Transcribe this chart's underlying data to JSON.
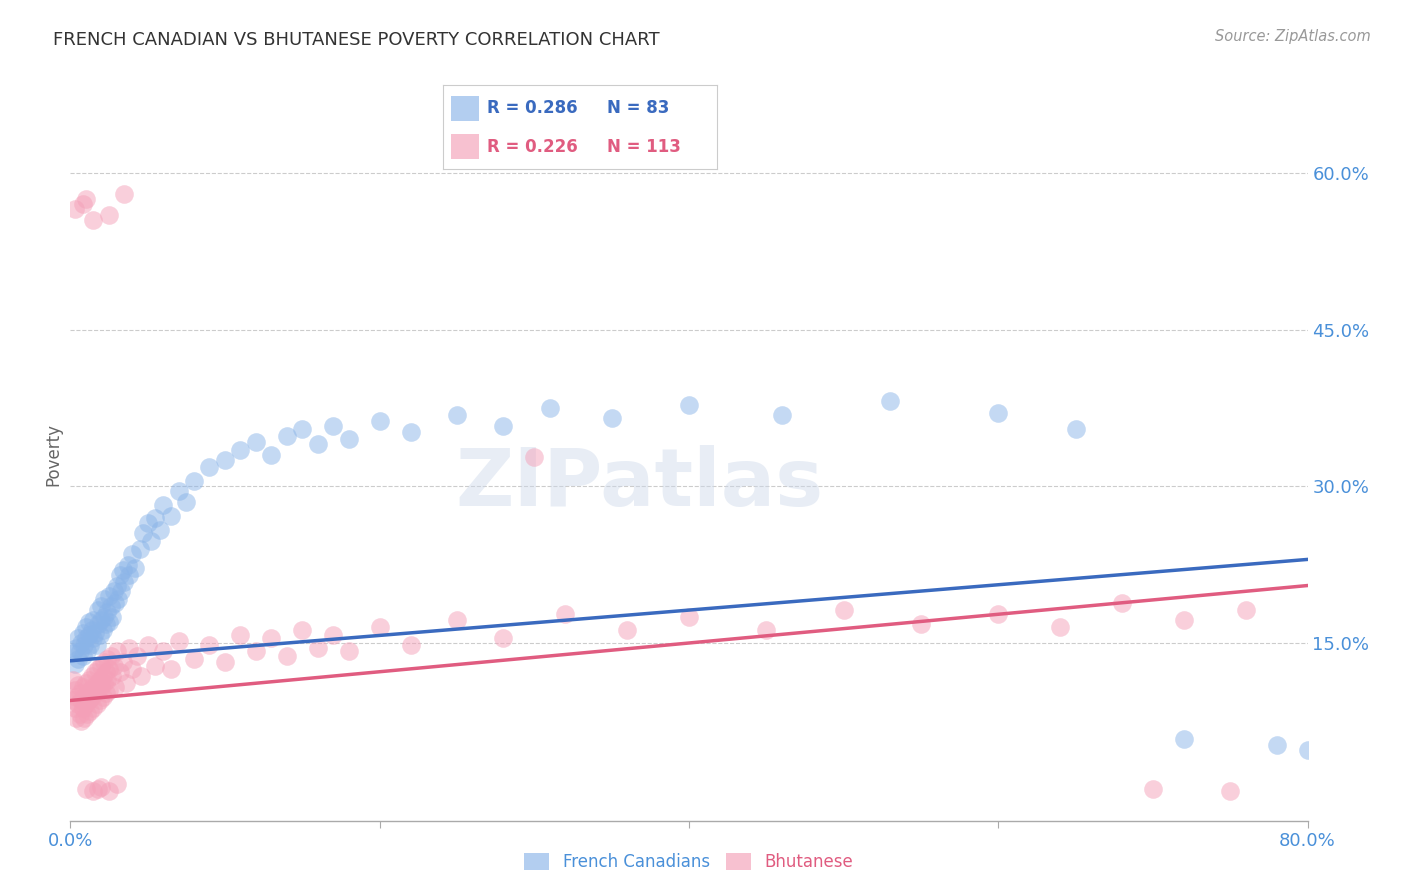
{
  "title": "FRENCH CANADIAN VS BHUTANESE POVERTY CORRELATION CHART",
  "source": "Source: ZipAtlas.com",
  "ylabel": "Poverty",
  "watermark": "ZIPatlas",
  "xlim": [
    0.0,
    0.8
  ],
  "ylim": [
    -0.02,
    0.68
  ],
  "xticks": [
    0.0,
    0.2,
    0.4,
    0.6,
    0.8
  ],
  "xticklabels": [
    "0.0%",
    "",
    "",
    "",
    "80.0%"
  ],
  "yticks": [
    0.15,
    0.3,
    0.45,
    0.6
  ],
  "yticklabels": [
    "15.0%",
    "30.0%",
    "45.0%",
    "60.0%"
  ],
  "blue_color": "#8ab4e8",
  "pink_color": "#f4a0b8",
  "blue_line_color": "#3a6abf",
  "pink_line_color": "#e05c80",
  "blue_label": "French Canadians",
  "pink_label": "Bhutanese",
  "blue_R": "0.286",
  "pink_R": "0.226",
  "blue_N": "83",
  "pink_N": "113",
  "background_color": "#ffffff",
  "grid_color": "#cccccc",
  "title_color": "#333333",
  "axis_label_color": "#666666",
  "tick_label_color": "#4a90d9",
  "source_color": "#999999",
  "blue_line_x": [
    0.0,
    0.8
  ],
  "blue_line_y": [
    0.133,
    0.23
  ],
  "pink_line_x": [
    0.0,
    0.8
  ],
  "pink_line_y": [
    0.095,
    0.205
  ],
  "blue_scatter": [
    [
      0.002,
      0.14
    ],
    [
      0.003,
      0.13
    ],
    [
      0.004,
      0.145
    ],
    [
      0.005,
      0.135
    ],
    [
      0.005,
      0.155
    ],
    [
      0.006,
      0.142
    ],
    [
      0.007,
      0.15
    ],
    [
      0.008,
      0.138
    ],
    [
      0.008,
      0.16
    ],
    [
      0.009,
      0.148
    ],
    [
      0.01,
      0.155
    ],
    [
      0.01,
      0.165
    ],
    [
      0.011,
      0.142
    ],
    [
      0.012,
      0.158
    ],
    [
      0.012,
      0.17
    ],
    [
      0.013,
      0.148
    ],
    [
      0.014,
      0.162
    ],
    [
      0.015,
      0.155
    ],
    [
      0.015,
      0.172
    ],
    [
      0.016,
      0.16
    ],
    [
      0.017,
      0.148
    ],
    [
      0.018,
      0.168
    ],
    [
      0.018,
      0.182
    ],
    [
      0.019,
      0.158
    ],
    [
      0.02,
      0.172
    ],
    [
      0.02,
      0.185
    ],
    [
      0.021,
      0.162
    ],
    [
      0.022,
      0.175
    ],
    [
      0.022,
      0.192
    ],
    [
      0.023,
      0.168
    ],
    [
      0.024,
      0.18
    ],
    [
      0.025,
      0.195
    ],
    [
      0.025,
      0.17
    ],
    [
      0.026,
      0.185
    ],
    [
      0.027,
      0.175
    ],
    [
      0.028,
      0.2
    ],
    [
      0.029,
      0.188
    ],
    [
      0.03,
      0.205
    ],
    [
      0.031,
      0.192
    ],
    [
      0.032,
      0.215
    ],
    [
      0.033,
      0.2
    ],
    [
      0.034,
      0.22
    ],
    [
      0.035,
      0.208
    ],
    [
      0.037,
      0.225
    ],
    [
      0.038,
      0.215
    ],
    [
      0.04,
      0.235
    ],
    [
      0.042,
      0.222
    ],
    [
      0.045,
      0.24
    ],
    [
      0.047,
      0.255
    ],
    [
      0.05,
      0.265
    ],
    [
      0.052,
      0.248
    ],
    [
      0.055,
      0.27
    ],
    [
      0.058,
      0.258
    ],
    [
      0.06,
      0.282
    ],
    [
      0.065,
      0.272
    ],
    [
      0.07,
      0.295
    ],
    [
      0.075,
      0.285
    ],
    [
      0.08,
      0.305
    ],
    [
      0.09,
      0.318
    ],
    [
      0.1,
      0.325
    ],
    [
      0.11,
      0.335
    ],
    [
      0.12,
      0.342
    ],
    [
      0.13,
      0.33
    ],
    [
      0.14,
      0.348
    ],
    [
      0.15,
      0.355
    ],
    [
      0.16,
      0.34
    ],
    [
      0.17,
      0.358
    ],
    [
      0.18,
      0.345
    ],
    [
      0.2,
      0.362
    ],
    [
      0.22,
      0.352
    ],
    [
      0.25,
      0.368
    ],
    [
      0.28,
      0.358
    ],
    [
      0.31,
      0.375
    ],
    [
      0.35,
      0.365
    ],
    [
      0.4,
      0.378
    ],
    [
      0.46,
      0.368
    ],
    [
      0.53,
      0.382
    ],
    [
      0.6,
      0.37
    ],
    [
      0.65,
      0.355
    ],
    [
      0.72,
      0.058
    ],
    [
      0.78,
      0.052
    ],
    [
      0.8,
      0.048
    ]
  ],
  "pink_scatter": [
    [
      0.002,
      0.115
    ],
    [
      0.002,
      0.095
    ],
    [
      0.003,
      0.105
    ],
    [
      0.003,
      0.088
    ],
    [
      0.004,
      0.098
    ],
    [
      0.004,
      0.078
    ],
    [
      0.005,
      0.11
    ],
    [
      0.005,
      0.092
    ],
    [
      0.006,
      0.102
    ],
    [
      0.006,
      0.082
    ],
    [
      0.007,
      0.095
    ],
    [
      0.007,
      0.075
    ],
    [
      0.008,
      0.108
    ],
    [
      0.008,
      0.088
    ],
    [
      0.009,
      0.098
    ],
    [
      0.009,
      0.078
    ],
    [
      0.01,
      0.112
    ],
    [
      0.01,
      0.092
    ],
    [
      0.011,
      0.102
    ],
    [
      0.011,
      0.082
    ],
    [
      0.012,
      0.115
    ],
    [
      0.012,
      0.095
    ],
    [
      0.013,
      0.105
    ],
    [
      0.013,
      0.085
    ],
    [
      0.014,
      0.118
    ],
    [
      0.014,
      0.098
    ],
    [
      0.015,
      0.108
    ],
    [
      0.015,
      0.088
    ],
    [
      0.016,
      0.122
    ],
    [
      0.016,
      0.102
    ],
    [
      0.017,
      0.112
    ],
    [
      0.017,
      0.092
    ],
    [
      0.018,
      0.125
    ],
    [
      0.018,
      0.105
    ],
    [
      0.019,
      0.115
    ],
    [
      0.019,
      0.095
    ],
    [
      0.02,
      0.128
    ],
    [
      0.02,
      0.108
    ],
    [
      0.021,
      0.118
    ],
    [
      0.021,
      0.098
    ],
    [
      0.022,
      0.132
    ],
    [
      0.022,
      0.112
    ],
    [
      0.023,
      0.122
    ],
    [
      0.023,
      0.102
    ],
    [
      0.024,
      0.135
    ],
    [
      0.024,
      0.115
    ],
    [
      0.025,
      0.125
    ],
    [
      0.025,
      0.105
    ],
    [
      0.026,
      0.138
    ],
    [
      0.027,
      0.118
    ],
    [
      0.028,
      0.128
    ],
    [
      0.029,
      0.108
    ],
    [
      0.03,
      0.142
    ],
    [
      0.032,
      0.122
    ],
    [
      0.034,
      0.132
    ],
    [
      0.036,
      0.112
    ],
    [
      0.038,
      0.145
    ],
    [
      0.04,
      0.125
    ],
    [
      0.043,
      0.138
    ],
    [
      0.046,
      0.118
    ],
    [
      0.05,
      0.148
    ],
    [
      0.055,
      0.128
    ],
    [
      0.06,
      0.142
    ],
    [
      0.065,
      0.125
    ],
    [
      0.07,
      0.152
    ],
    [
      0.08,
      0.135
    ],
    [
      0.09,
      0.148
    ],
    [
      0.1,
      0.132
    ],
    [
      0.11,
      0.158
    ],
    [
      0.12,
      0.142
    ],
    [
      0.13,
      0.155
    ],
    [
      0.14,
      0.138
    ],
    [
      0.15,
      0.162
    ],
    [
      0.16,
      0.145
    ],
    [
      0.17,
      0.158
    ],
    [
      0.18,
      0.142
    ],
    [
      0.2,
      0.165
    ],
    [
      0.22,
      0.148
    ],
    [
      0.25,
      0.172
    ],
    [
      0.28,
      0.155
    ],
    [
      0.32,
      0.178
    ],
    [
      0.36,
      0.162
    ],
    [
      0.4,
      0.175
    ],
    [
      0.45,
      0.162
    ],
    [
      0.5,
      0.182
    ],
    [
      0.55,
      0.168
    ],
    [
      0.6,
      0.178
    ],
    [
      0.64,
      0.165
    ],
    [
      0.68,
      0.188
    ],
    [
      0.72,
      0.172
    ],
    [
      0.76,
      0.182
    ],
    [
      0.003,
      0.565
    ],
    [
      0.01,
      0.575
    ],
    [
      0.025,
      0.56
    ],
    [
      0.015,
      0.555
    ],
    [
      0.035,
      0.58
    ],
    [
      0.008,
      0.57
    ],
    [
      0.3,
      0.328
    ],
    [
      0.01,
      0.01
    ],
    [
      0.015,
      0.008
    ],
    [
      0.02,
      0.012
    ],
    [
      0.025,
      0.008
    ],
    [
      0.03,
      0.015
    ],
    [
      0.018,
      0.01
    ],
    [
      0.7,
      0.01
    ],
    [
      0.75,
      0.008
    ]
  ]
}
